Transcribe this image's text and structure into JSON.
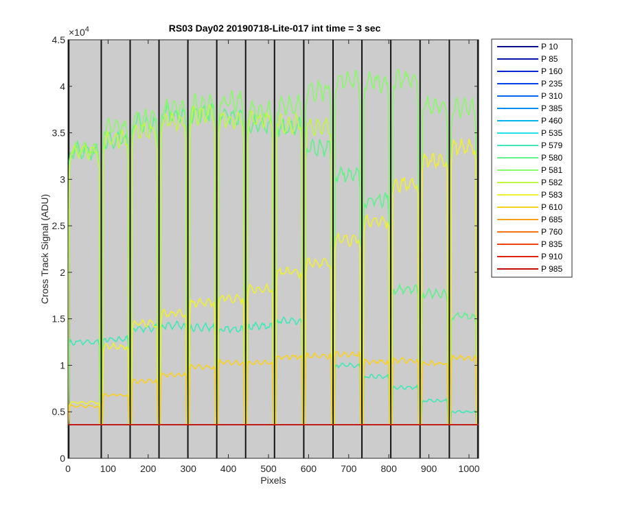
{
  "chart_data": {
    "type": "line",
    "title": "RS03 Day02 20190718-Lite-017 int time = 3 sec",
    "xlabel": "Pixels",
    "ylabel": "Cross Track Signal (ADU)",
    "y_exponent_label": "×10",
    "y_exponent_power": "4",
    "xlim": [
      0,
      1024
    ],
    "ylim": [
      0,
      45000
    ],
    "x_ticks": [
      0,
      100,
      200,
      300,
      400,
      500,
      600,
      700,
      800,
      900,
      1000
    ],
    "x_tick_labels": [
      "0",
      "100",
      "200",
      "300",
      "400",
      "500",
      "600",
      "700",
      "800",
      "900",
      "1000"
    ],
    "y_ticks": [
      0,
      5000,
      10000,
      15000,
      20000,
      25000,
      30000,
      35000,
      40000,
      45000
    ],
    "y_tick_labels": [
      "0",
      "0.5",
      "1",
      "1.5",
      "2",
      "2.5",
      "3",
      "3.5",
      "4",
      "4.5"
    ],
    "background_color": "#cccccc",
    "grid": false,
    "legend_position": "outside-top-right",
    "separators": [
      2,
      83,
      155,
      227,
      299,
      371,
      443,
      515,
      588,
      661,
      733,
      805,
      878,
      951,
      1022
    ],
    "segments": [
      {
        "x0": 3,
        "x1": 78
      },
      {
        "x0": 88,
        "x1": 150
      },
      {
        "x0": 160,
        "x1": 222
      },
      {
        "x0": 232,
        "x1": 294
      },
      {
        "x0": 304,
        "x1": 366
      },
      {
        "x0": 376,
        "x1": 438
      },
      {
        "x0": 448,
        "x1": 510
      },
      {
        "x0": 520,
        "x1": 583
      },
      {
        "x0": 593,
        "x1": 656
      },
      {
        "x0": 666,
        "x1": 728
      },
      {
        "x0": 738,
        "x1": 800
      },
      {
        "x0": 810,
        "x1": 873
      },
      {
        "x0": 883,
        "x1": 946
      },
      {
        "x0": 956,
        "x1": 1017
      }
    ],
    "baseline_value": 3600,
    "series": [
      {
        "name": "P 10",
        "color": "#0a0a8c",
        "levels": [
          3600,
          3600,
          3600,
          3600,
          3600,
          3600,
          3600,
          3600,
          3600,
          3600,
          3600,
          3600,
          3600,
          3600
        ]
      },
      {
        "name": "P 85",
        "color": "#0010a8",
        "levels": [
          3600,
          3600,
          3600,
          3600,
          3600,
          3600,
          3600,
          3600,
          3600,
          3600,
          3600,
          3600,
          3600,
          3600
        ]
      },
      {
        "name": "P 160",
        "color": "#0024d0",
        "levels": [
          3600,
          3600,
          3600,
          3600,
          3600,
          3600,
          3600,
          3600,
          3600,
          3600,
          3600,
          3600,
          3600,
          3600
        ]
      },
      {
        "name": "P 235",
        "color": "#0044e8",
        "levels": [
          3600,
          3600,
          3600,
          3600,
          3600,
          3600,
          3600,
          3600,
          3600,
          3600,
          3600,
          3600,
          3600,
          3600
        ]
      },
      {
        "name": "P 310",
        "color": "#0066f0",
        "levels": [
          3600,
          3600,
          3600,
          3600,
          3600,
          3600,
          3600,
          3600,
          3600,
          3600,
          3600,
          3600,
          3600,
          3600
        ]
      },
      {
        "name": "P 385",
        "color": "#0090f0",
        "levels": [
          3600,
          3600,
          3600,
          3600,
          3600,
          3600,
          3600,
          3600,
          3600,
          3600,
          3600,
          3600,
          3600,
          3600
        ]
      },
      {
        "name": "P 460",
        "color": "#00b4f0",
        "levels": [
          3600,
          3600,
          3600,
          3600,
          3600,
          3600,
          3600,
          3600,
          3600,
          3600,
          3600,
          3600,
          3600,
          3600
        ]
      },
      {
        "name": "P 535",
        "color": "#20e0e8",
        "levels": [
          3600,
          3600,
          3600,
          3600,
          3600,
          3600,
          3600,
          3600,
          3600,
          3600,
          3600,
          3600,
          3600,
          3600
        ]
      },
      {
        "name": "P 579",
        "color": "#40e8b8",
        "levels": [
          12500,
          12800,
          14000,
          14300,
          14100,
          13900,
          14200,
          14800,
          3600,
          10000,
          8800,
          7600,
          6200,
          5000
        ]
      },
      {
        "name": "P 580",
        "color": "#60f08c",
        "levels": [
          33000,
          34300,
          36000,
          37000,
          37200,
          36800,
          35900,
          35600,
          33400,
          30600,
          27800,
          18200,
          17700,
          15300
        ]
      },
      {
        "name": "P 581",
        "color": "#88f868",
        "levels": [
          33000,
          35500,
          36600,
          37600,
          38100,
          38400,
          37400,
          38000,
          39500,
          40500,
          40500,
          40700,
          37800,
          37600
        ]
      },
      {
        "name": "P 582",
        "color": "#c0f840",
        "levels": [
          33000,
          34300,
          35200,
          36200,
          36900,
          36400,
          36400,
          36000,
          35600,
          3600,
          3600,
          3600,
          3600,
          3600
        ]
      },
      {
        "name": "P 583",
        "color": "#f0f030",
        "levels": [
          6000,
          12000,
          14500,
          15600,
          16700,
          17200,
          18200,
          20000,
          21000,
          23500,
          25500,
          29500,
          32000,
          33500
        ]
      },
      {
        "name": "P 610",
        "color": "#f8d020",
        "levels": [
          5600,
          6800,
          8300,
          9000,
          9800,
          10300,
          10300,
          10900,
          11000,
          11200,
          10400,
          10500,
          10200,
          10800
        ]
      },
      {
        "name": "P 685",
        "color": "#f8a010",
        "levels": [
          3600,
          3600,
          3600,
          3600,
          3600,
          3600,
          3600,
          3600,
          3600,
          3600,
          3600,
          3600,
          3600,
          3600
        ]
      },
      {
        "name": "P 760",
        "color": "#f87010",
        "levels": [
          3600,
          3600,
          3600,
          3600,
          3600,
          3600,
          3600,
          3600,
          3600,
          3600,
          3600,
          3600,
          3600,
          3600
        ]
      },
      {
        "name": "P 835",
        "color": "#f04010",
        "levels": [
          3600,
          3600,
          3600,
          3600,
          3600,
          3600,
          3600,
          3600,
          3600,
          3600,
          3600,
          3600,
          3600,
          3600
        ]
      },
      {
        "name": "P 910",
        "color": "#e02010",
        "levels": [
          3600,
          3600,
          3600,
          3600,
          3600,
          3600,
          3600,
          3600,
          3600,
          3600,
          3600,
          3600,
          3600,
          3600
        ]
      },
      {
        "name": "P 985",
        "color": "#c00808",
        "levels": [
          3600,
          3600,
          3600,
          3600,
          3600,
          3600,
          3600,
          3600,
          3600,
          3600,
          3600,
          3600,
          3600,
          3600
        ]
      }
    ]
  }
}
